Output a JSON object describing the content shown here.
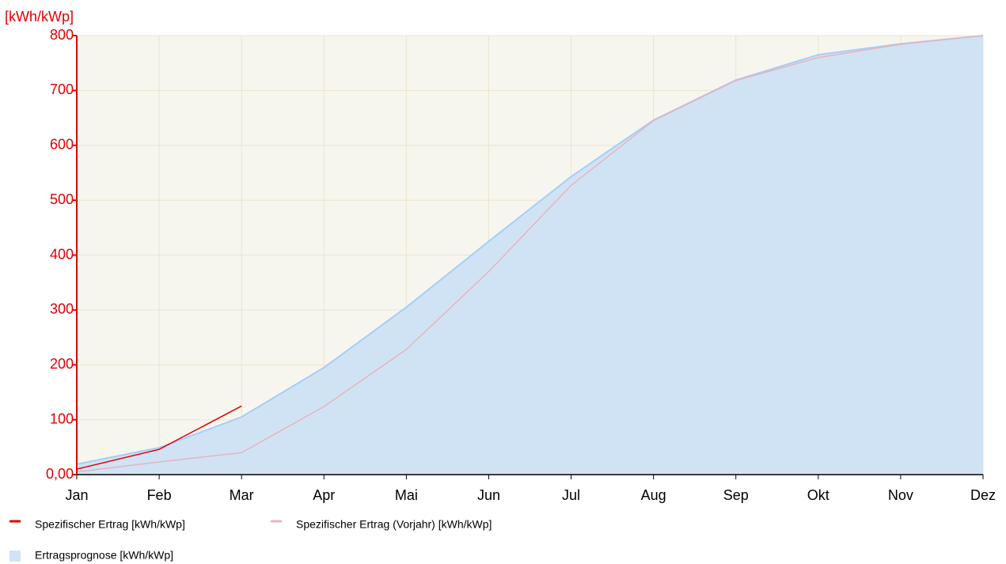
{
  "chart_data": {
    "type": "line",
    "ylabel": "[kWh/kWp]",
    "categories": [
      "Jan",
      "Feb",
      "Mar",
      "Apr",
      "Mai",
      "Jun",
      "Jul",
      "Aug",
      "Sep",
      "Okt",
      "Nov",
      "Dez"
    ],
    "series": [
      {
        "name": "Spezifischer Ertrag [kWh/kWp]",
        "type": "line",
        "color": "#e00000",
        "values": [
          10,
          46,
          125,
          null,
          null,
          null,
          null,
          null,
          null,
          null,
          null,
          null
        ]
      },
      {
        "name": "Spezifischer Ertrag (Vorjahr) [kWh/kWp]",
        "type": "line",
        "color": "#e8b4bc",
        "values": [
          5,
          23,
          40,
          124,
          228,
          370,
          527,
          645,
          718,
          760,
          784,
          800
        ]
      },
      {
        "name": "Ertragsprognose [kWh/kWp]",
        "type": "area",
        "color": "#a8cdf5",
        "fill": "#d0e3f5",
        "values": [
          19,
          49,
          105,
          195,
          305,
          425,
          543,
          646,
          719,
          765,
          785,
          800
        ]
      }
    ],
    "ylim": [
      0,
      800
    ],
    "yticks": [
      {
        "value": 0,
        "label": "0,00"
      },
      100,
      200,
      300,
      400,
      500,
      600,
      700,
      800
    ],
    "grid": true
  }
}
